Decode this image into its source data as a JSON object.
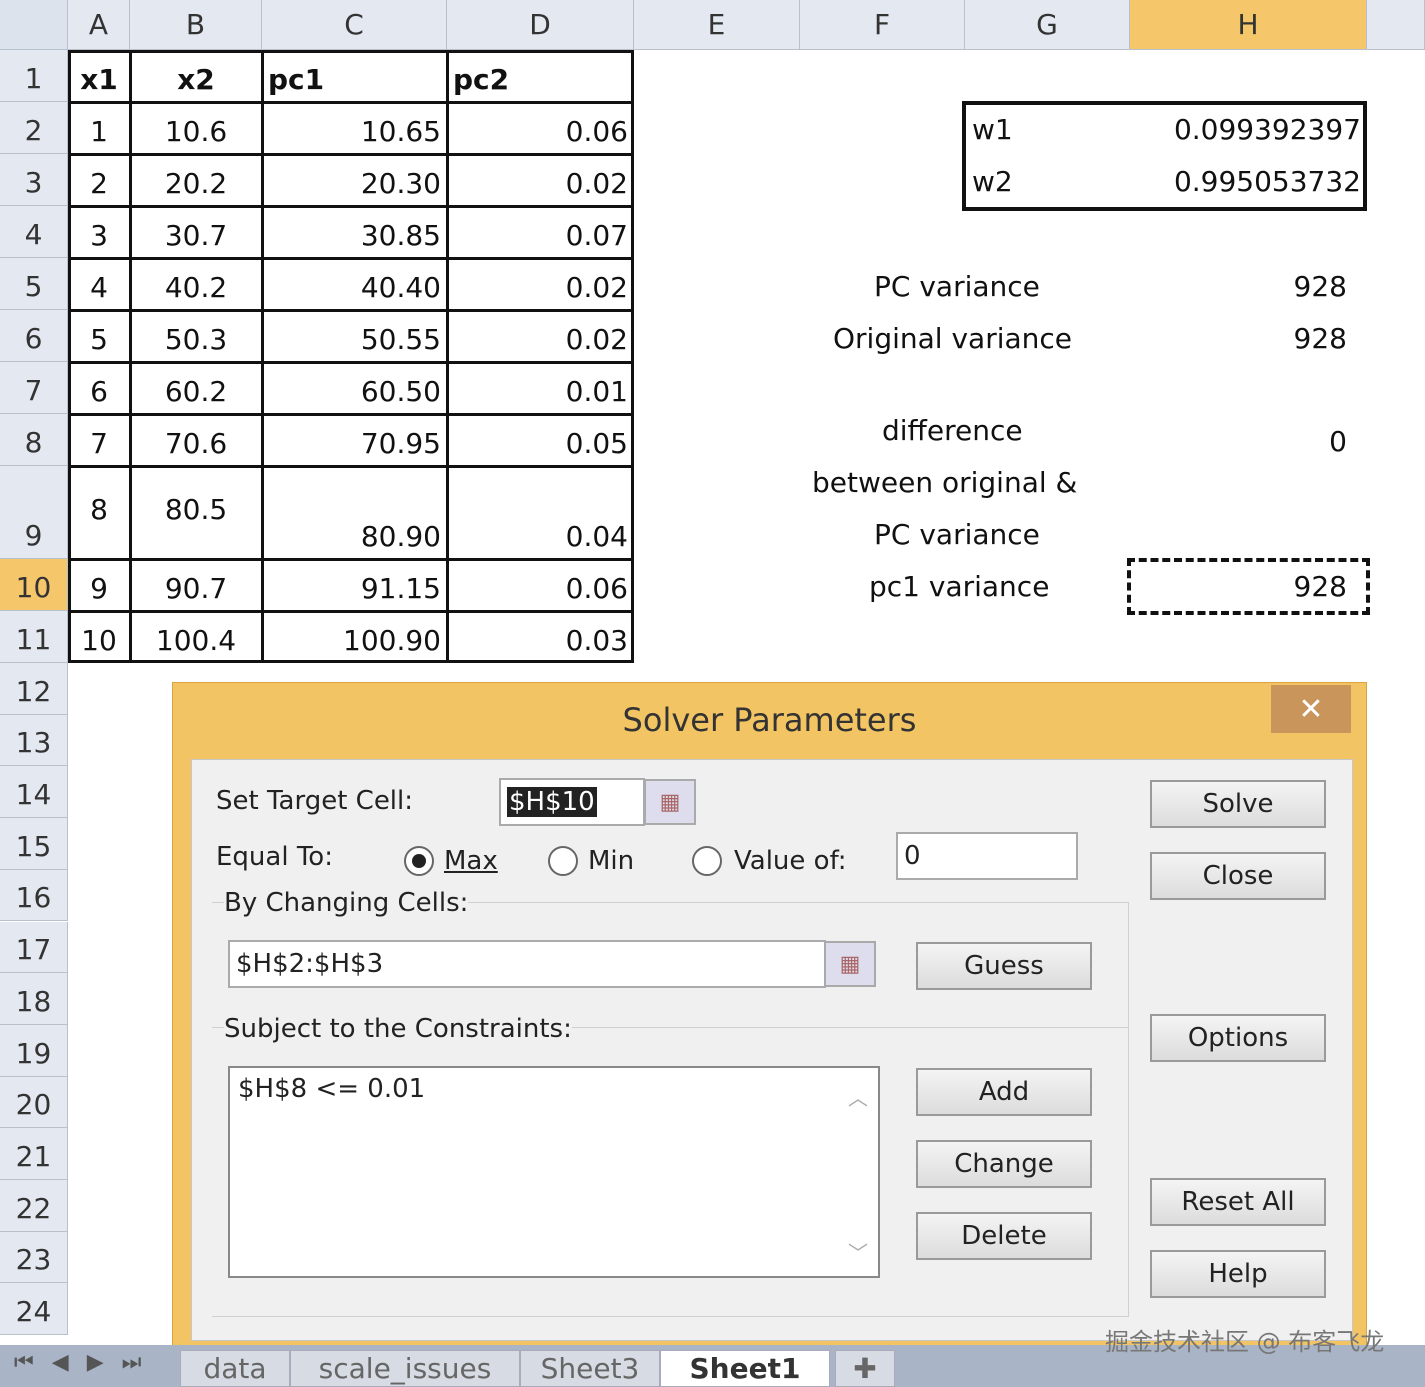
{
  "columns": [
    "A",
    "B",
    "C",
    "D",
    "E",
    "F",
    "G",
    "H"
  ],
  "rows": [
    "1",
    "2",
    "3",
    "4",
    "5",
    "6",
    "7",
    "8",
    "9",
    "10",
    "11",
    "12",
    "13",
    "14",
    "15",
    "16",
    "17",
    "18",
    "19",
    "20",
    "21",
    "22",
    "23",
    "24"
  ],
  "table": {
    "headers": [
      "x1",
      "x2",
      "pc1",
      "pc2"
    ],
    "rows": [
      [
        "1",
        "10.6",
        "10.65",
        "0.06"
      ],
      [
        "2",
        "20.2",
        "20.30",
        "0.02"
      ],
      [
        "3",
        "30.7",
        "30.85",
        "0.07"
      ],
      [
        "4",
        "40.2",
        "40.40",
        "0.02"
      ],
      [
        "5",
        "50.3",
        "50.55",
        "0.02"
      ],
      [
        "6",
        "60.2",
        "60.50",
        "0.01"
      ],
      [
        "7",
        "70.6",
        "70.95",
        "0.05"
      ],
      [
        "8",
        "80.5",
        "80.90",
        "0.04"
      ],
      [
        "9",
        "90.7",
        "91.15",
        "0.06"
      ],
      [
        "10",
        "100.4",
        "100.90",
        "0.03"
      ]
    ]
  },
  "weights": {
    "w1_label": "w1",
    "w1": "0.099392397",
    "w2_label": "w2",
    "w2": "0.995053732"
  },
  "stats": {
    "pc_variance_label": "PC variance",
    "pc_variance": "928",
    "orig_variance_label": "Original variance",
    "orig_variance": "928",
    "diff_label_1": "difference",
    "diff_label_2": "between original &",
    "diff_label_3": "PC variance",
    "diff": "0",
    "pc1_variance_label": "pc1 variance",
    "pc1_variance": "928"
  },
  "dialog": {
    "title": "Solver Parameters",
    "close": "✕",
    "target_label": "Set Target Cell:",
    "target_value": "$H$10",
    "equal_label": "Equal To:",
    "max": "Max",
    "min": "Min",
    "value_of": "Value of:",
    "value_of_input": "0",
    "selected": "Max",
    "changing_label": "By Changing Cells:",
    "changing_value": "$H$2:$H$3",
    "constraints_label": "Subject to the Constraints:",
    "constraints": [
      "$H$8 <= 0.01"
    ],
    "buttons": {
      "solve": "Solve",
      "close": "Close",
      "options": "Options",
      "reset": "Reset All",
      "help": "Help",
      "guess": "Guess",
      "add": "Add",
      "change": "Change",
      "delete": "Delete"
    }
  },
  "sheets": {
    "tabs": [
      "data",
      "scale_issues",
      "Sheet3",
      "Sheet1"
    ],
    "active": "Sheet1"
  },
  "watermark": "掘金技术社区 @ 布客飞龙",
  "colors": {
    "accent": "#f5c66a",
    "dialog_border": "#f2c463"
  }
}
